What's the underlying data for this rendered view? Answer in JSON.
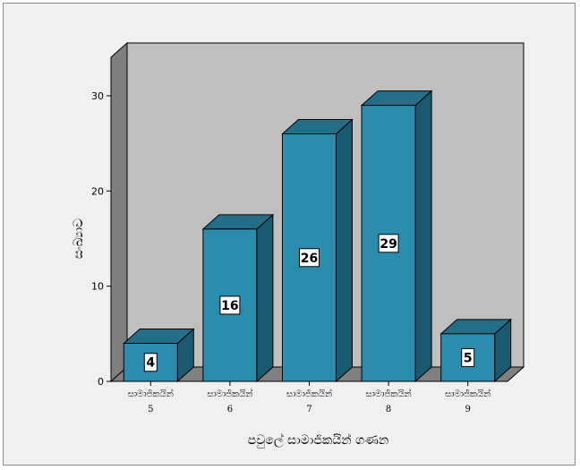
{
  "chart_data": {
    "type": "bar",
    "categories": [
      "සාමාජිකයින් 5",
      "සාමාජිකයින් 6",
      "සාමාජිකයින් 7",
      "සාමාජිකයින් 8",
      "සාමාජිකයින් 9"
    ],
    "category_words": [
      "සාමාජිකයින්",
      "සාමාජිකයින්",
      "සාමාජිකයින්",
      "සාමාජිකයින්",
      "සාමාජිකයින්"
    ],
    "category_numbers": [
      "5",
      "6",
      "7",
      "8",
      "9"
    ],
    "values": [
      4,
      16,
      26,
      29,
      5
    ],
    "data_labels": [
      "4",
      "16",
      "26",
      "29",
      "5"
    ],
    "xlabel": "පවුලේ සාමාජිකයින් ගණන",
    "ylabel": "සංඛ්‍යාව",
    "ylim": [
      0,
      30
    ],
    "yticks": [
      "0",
      "10",
      "20",
      "30"
    ],
    "three_d": true,
    "grid": false,
    "legend": "none",
    "colors": {
      "bar_front": "#2b8cae",
      "bar_side": "#1a5a70",
      "bar_top": "#236f8a",
      "back_wall": "#bfbfbf",
      "side_wall": "#7f7f7f",
      "floor": "#808080",
      "outer_background": "#f0f0f0"
    }
  }
}
